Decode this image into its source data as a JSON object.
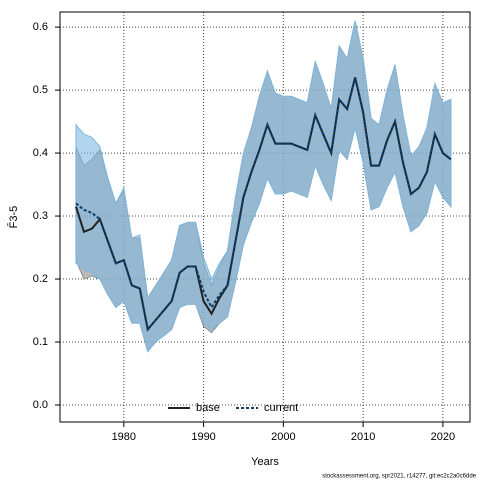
{
  "chart_data": {
    "type": "line",
    "xlabel": "Years",
    "ylabel": "F̄3-5",
    "note": "stockassessment.org, spr2021, r14277, git:ec2c2a0c6dde",
    "x": [
      1974,
      1975,
      1976,
      1977,
      1978,
      1979,
      1980,
      1981,
      1982,
      1983,
      1984,
      1985,
      1986,
      1987,
      1988,
      1989,
      1990,
      1991,
      1992,
      1993,
      1994,
      1995,
      1996,
      1997,
      1998,
      1999,
      2000,
      2001,
      2002,
      2003,
      2004,
      2005,
      2006,
      2007,
      2008,
      2009,
      2010,
      2011,
      2012,
      2013,
      2014,
      2015,
      2016,
      2017,
      2018,
      2019,
      2020,
      2021
    ],
    "series": [
      {
        "name": "base",
        "color": "#222222",
        "band_color": "#8c8c8c",
        "dash": false,
        "values": [
          0.315,
          0.275,
          0.28,
          0.295,
          0.26,
          0.225,
          0.23,
          0.19,
          0.185,
          0.12,
          0.135,
          0.15,
          0.165,
          0.21,
          0.22,
          0.22,
          0.165,
          0.145,
          0.17,
          0.19,
          0.26,
          0.33,
          0.37,
          0.405,
          0.445,
          0.415,
          0.415,
          0.415,
          0.41,
          0.405,
          0.46,
          0.43,
          0.4,
          0.485,
          0.47,
          0.52,
          0.465,
          0.38,
          0.38,
          0.42,
          0.45,
          0.385,
          0.335,
          0.345,
          0.37,
          0.43,
          0.4,
          0.39
        ],
        "upper": [
          0.41,
          0.38,
          0.39,
          0.405,
          0.36,
          0.32,
          0.34,
          0.265,
          0.265,
          0.17,
          0.19,
          0.21,
          0.23,
          0.285,
          0.29,
          0.29,
          0.225,
          0.19,
          0.22,
          0.245,
          0.33,
          0.4,
          0.44,
          0.49,
          0.53,
          0.495,
          0.49,
          0.49,
          0.485,
          0.48,
          0.545,
          0.51,
          0.47,
          0.57,
          0.55,
          0.61,
          0.55,
          0.455,
          0.445,
          0.5,
          0.54,
          0.46,
          0.395,
          0.41,
          0.44,
          0.51,
          0.48,
          0.485
        ],
        "lower": [
          0.23,
          0.2,
          0.205,
          0.2,
          0.175,
          0.155,
          0.165,
          0.13,
          0.13,
          0.085,
          0.1,
          0.11,
          0.12,
          0.155,
          0.16,
          0.16,
          0.125,
          0.115,
          0.13,
          0.14,
          0.195,
          0.255,
          0.29,
          0.32,
          0.36,
          0.335,
          0.335,
          0.34,
          0.335,
          0.33,
          0.38,
          0.35,
          0.325,
          0.405,
          0.39,
          0.44,
          0.385,
          0.31,
          0.315,
          0.345,
          0.37,
          0.315,
          0.275,
          0.285,
          0.305,
          0.355,
          0.33,
          0.315
        ]
      },
      {
        "name": "current",
        "color": "#0b3d6e",
        "band_color": "#7fb8e0",
        "dash": true,
        "values": [
          0.32,
          0.31,
          0.305,
          0.295,
          0.26,
          0.225,
          0.23,
          0.19,
          0.185,
          0.12,
          0.135,
          0.15,
          0.165,
          0.21,
          0.22,
          0.22,
          0.18,
          0.155,
          0.175,
          0.19,
          0.26,
          0.33,
          0.37,
          0.405,
          0.445,
          0.415,
          0.415,
          0.415,
          0.41,
          0.405,
          0.46,
          0.43,
          0.4,
          0.485,
          0.47,
          0.52,
          0.465,
          0.38,
          0.38,
          0.42,
          0.45,
          0.385,
          0.335,
          0.345,
          0.37,
          0.43,
          0.4,
          0.39
        ],
        "upper": [
          0.445,
          0.43,
          0.425,
          0.41,
          0.36,
          0.32,
          0.345,
          0.265,
          0.27,
          0.17,
          0.19,
          0.21,
          0.23,
          0.285,
          0.29,
          0.29,
          0.235,
          0.2,
          0.225,
          0.245,
          0.33,
          0.4,
          0.44,
          0.49,
          0.53,
          0.495,
          0.49,
          0.49,
          0.485,
          0.48,
          0.545,
          0.51,
          0.47,
          0.57,
          0.55,
          0.61,
          0.55,
          0.455,
          0.445,
          0.5,
          0.54,
          0.46,
          0.395,
          0.41,
          0.44,
          0.51,
          0.48,
          0.485
        ],
        "lower": [
          0.225,
          0.215,
          0.21,
          0.2,
          0.175,
          0.155,
          0.165,
          0.13,
          0.13,
          0.085,
          0.1,
          0.11,
          0.12,
          0.155,
          0.16,
          0.16,
          0.13,
          0.12,
          0.13,
          0.14,
          0.195,
          0.255,
          0.29,
          0.32,
          0.36,
          0.335,
          0.335,
          0.34,
          0.335,
          0.33,
          0.38,
          0.35,
          0.325,
          0.405,
          0.39,
          0.44,
          0.385,
          0.31,
          0.315,
          0.345,
          0.37,
          0.315,
          0.275,
          0.285,
          0.305,
          0.355,
          0.33,
          0.315
        ]
      }
    ],
    "xlim": [
      1972,
      2023.4
    ],
    "xticks": [
      1980,
      1990,
      2000,
      2010,
      2020
    ],
    "ylim": [
      -0.027,
      0.624
    ],
    "yticks": [
      {
        "value": 0,
        "label": "0.0"
      },
      0.1,
      0.2,
      0.3,
      0.4,
      0.5,
      0.6
    ],
    "grid": true,
    "legend": "bottom"
  }
}
